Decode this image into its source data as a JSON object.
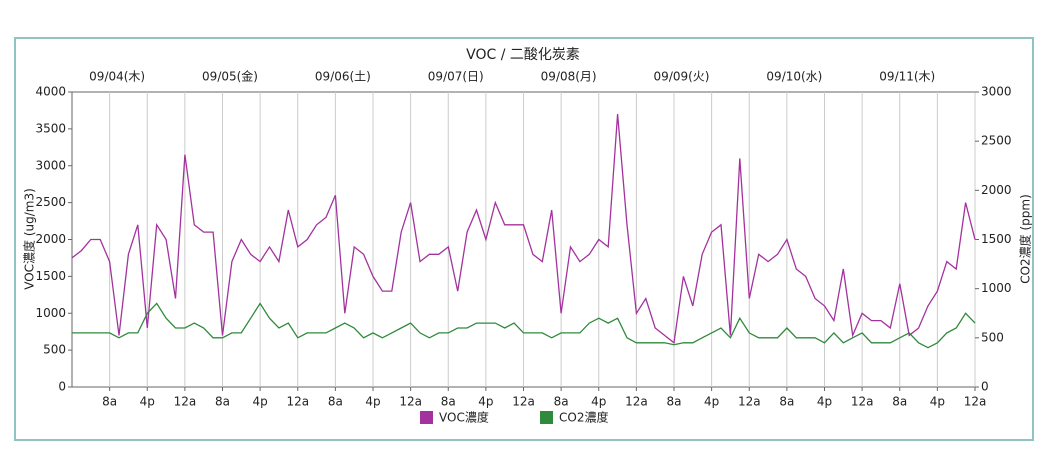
{
  "chart_data": {
    "type": "line",
    "title": "VOC / 二酸化炭素",
    "ylabel": "VOC濃度 (ug/m3)",
    "y2label": "CO2濃度 (ppm)",
    "day_labels": [
      "09/04(木)",
      "09/05(金)",
      "09/06(土)",
      "09/07(日)",
      "09/08(月)",
      "09/09(火)",
      "09/10(水)",
      "09/11(木)"
    ],
    "x": [
      0,
      2,
      4,
      6,
      8,
      10,
      12,
      14,
      16,
      18,
      20,
      22,
      24,
      26,
      28,
      30,
      32,
      34,
      36,
      38,
      40,
      42,
      44,
      46,
      48,
      50,
      52,
      54,
      56,
      58,
      60,
      62,
      64,
      66,
      68,
      70,
      72,
      74,
      76,
      78,
      80,
      82,
      84,
      86,
      88,
      90,
      92,
      94,
      96,
      98,
      100,
      102,
      104,
      106,
      108,
      110,
      112,
      114,
      116,
      118,
      120,
      122,
      124,
      126,
      128,
      130,
      132,
      134,
      136,
      138,
      140,
      142,
      144,
      146,
      148,
      150,
      152,
      154,
      156,
      158,
      160,
      162,
      164,
      166,
      168,
      170,
      172,
      174,
      176,
      178,
      180,
      182,
      184,
      186,
      188,
      190,
      192
    ],
    "series": [
      {
        "name": "VOC濃度",
        "color": "#a3329e",
        "axis": "y",
        "values": [
          1750,
          1850,
          2000,
          2000,
          1700,
          700,
          1800,
          2200,
          800,
          2200,
          2000,
          1200,
          3150,
          2200,
          2100,
          2100,
          700,
          1700,
          2000,
          1800,
          1700,
          1900,
          1700,
          2400,
          1900,
          2000,
          2200,
          2300,
          2600,
          1000,
          1900,
          1800,
          1500,
          1300,
          1300,
          2100,
          2500,
          1700,
          1800,
          1800,
          1900,
          1300,
          2100,
          2400,
          2000,
          2500,
          2200,
          2200,
          2200,
          1800,
          1700,
          2400,
          1000,
          1900,
          1700,
          1800,
          2000,
          1900,
          3700,
          2200,
          1000,
          1200,
          800,
          700,
          600,
          1500,
          1100,
          1800,
          2100,
          2200,
          700,
          3100,
          1200,
          1800,
          1700,
          1800,
          2000,
          1600,
          1500,
          1200,
          1100,
          900,
          1600,
          700,
          1000,
          900,
          900,
          800,
          1400,
          700,
          800,
          1100,
          1300,
          1700,
          1600,
          2500,
          2000
        ]
      },
      {
        "name": "CO2濃度",
        "color": "#2f8a3c",
        "axis": "y2",
        "values": [
          550,
          550,
          550,
          550,
          550,
          500,
          550,
          550,
          750,
          850,
          700,
          600,
          600,
          650,
          600,
          500,
          500,
          550,
          550,
          700,
          850,
          700,
          600,
          650,
          500,
          550,
          550,
          550,
          600,
          650,
          600,
          500,
          550,
          500,
          550,
          600,
          650,
          550,
          500,
          550,
          550,
          600,
          600,
          650,
          650,
          650,
          600,
          650,
          550,
          550,
          550,
          500,
          550,
          550,
          550,
          650,
          700,
          650,
          700,
          500,
          450,
          450,
          450,
          450,
          430,
          450,
          450,
          500,
          550,
          600,
          500,
          700,
          550,
          500,
          500,
          500,
          600,
          500,
          500,
          500,
          450,
          550,
          450,
          500,
          550,
          450,
          450,
          450,
          500,
          550,
          450,
          400,
          450,
          550,
          600,
          750,
          650
        ]
      }
    ],
    "xlim": [
      0,
      192
    ],
    "xticks": [
      {
        "value": 8,
        "label": "8a"
      },
      {
        "value": 16,
        "label": "4p"
      },
      {
        "value": 24,
        "label": "12a"
      },
      {
        "value": 32,
        "label": "8a"
      },
      {
        "value": 40,
        "label": "4p"
      },
      {
        "value": 48,
        "label": "12a"
      },
      {
        "value": 56,
        "label": "8a"
      },
      {
        "value": 64,
        "label": "4p"
      },
      {
        "value": 72,
        "label": "12a"
      },
      {
        "value": 80,
        "label": "8a"
      },
      {
        "value": 88,
        "label": "4p"
      },
      {
        "value": 96,
        "label": "12a"
      },
      {
        "value": 104,
        "label": "8a"
      },
      {
        "value": 112,
        "label": "4p"
      },
      {
        "value": 120,
        "label": "12a"
      },
      {
        "value": 128,
        "label": "8a"
      },
      {
        "value": 136,
        "label": "4p"
      },
      {
        "value": 144,
        "label": "12a"
      },
      {
        "value": 152,
        "label": "8a"
      },
      {
        "value": 160,
        "label": "4p"
      },
      {
        "value": 168,
        "label": "12a"
      },
      {
        "value": 176,
        "label": "8a"
      },
      {
        "value": 184,
        "label": "4p"
      },
      {
        "value": 192,
        "label": "12a"
      }
    ],
    "ylim": [
      0,
      4000
    ],
    "yticks": [
      0,
      500,
      1000,
      1500,
      2000,
      2500,
      3000,
      3500,
      4000
    ],
    "y2lim": [
      0,
      3000
    ],
    "y2ticks": [
      0,
      500,
      1000,
      1500,
      2000,
      2500,
      3000
    ],
    "grid": true,
    "legend": "bottom"
  }
}
